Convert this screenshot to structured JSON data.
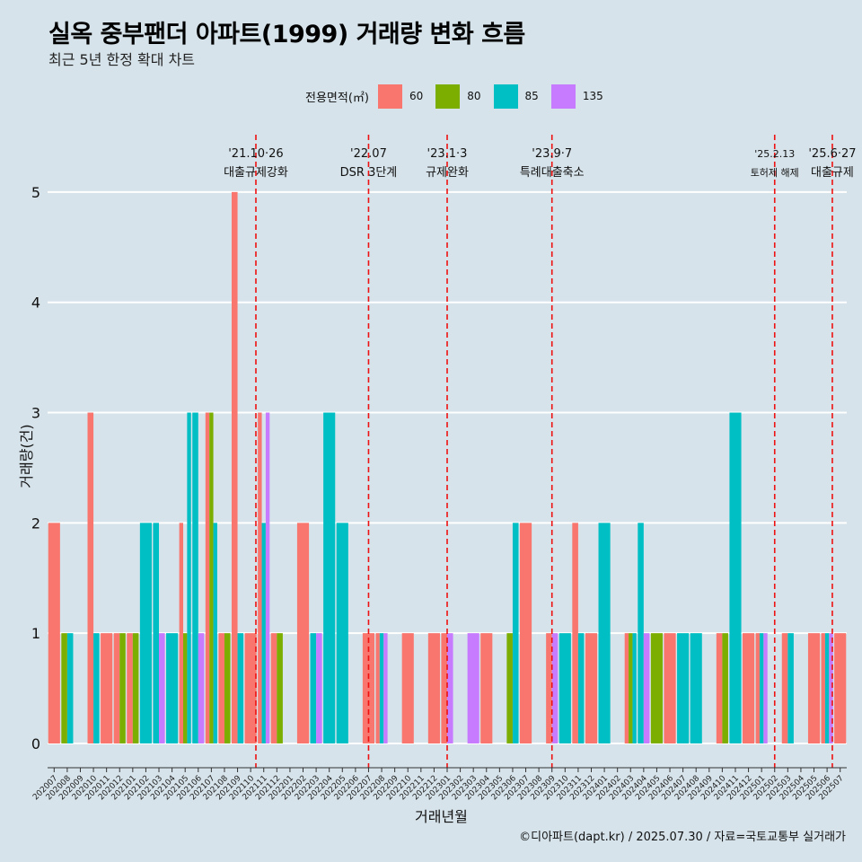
{
  "header": {
    "title": "실옥 중부팬더 아파트(1999) 거래량 변화 흐름",
    "subtitle": "최근 5년 한정 확대 차트"
  },
  "legend": {
    "title": "전용면적(㎡)",
    "items": [
      {
        "label": "60",
        "color": "#F8766D"
      },
      {
        "label": "80",
        "color": "#7CAE00"
      },
      {
        "label": "85",
        "color": "#00BFC4"
      },
      {
        "label": "135",
        "color": "#C77CFF"
      }
    ]
  },
  "caption": "©디아파트(dapt.kr) / 2025.07.30 / 자료=국토교통부 실거래가",
  "chart_data": {
    "type": "bar",
    "xlabel": "거래년월",
    "ylabel": "거래량(건)",
    "ylim": [
      -0.22,
      5.52
    ],
    "yticks": [
      0,
      1,
      2,
      3,
      4,
      5
    ],
    "categories": [
      "202007",
      "202008",
      "202009",
      "202010",
      "202011",
      "202012",
      "202101",
      "202102",
      "202103",
      "202104",
      "202105",
      "202106",
      "202107",
      "202108",
      "202109",
      "202110",
      "202111",
      "202112",
      "202201",
      "202202",
      "202203",
      "202204",
      "202205",
      "202206",
      "202207",
      "202208",
      "202209",
      "202210",
      "202211",
      "202212",
      "202301",
      "202302",
      "202303",
      "202304",
      "202305",
      "202306",
      "202307",
      "202308",
      "202309",
      "202310",
      "202311",
      "202312",
      "202401",
      "202402",
      "202403",
      "202404",
      "202405",
      "202406",
      "202407",
      "202408",
      "202409",
      "202410",
      "202411",
      "202412",
      "202501",
      "202502",
      "202503",
      "202504",
      "202505",
      "202506",
      "202507"
    ],
    "series": [
      {
        "name": "60",
        "color": "#F8766D",
        "points": [
          {
            "x": "202007",
            "y": 2
          },
          {
            "x": "202010",
            "y": 3
          },
          {
            "x": "202011",
            "y": 1
          },
          {
            "x": "202012",
            "y": 1
          },
          {
            "x": "202101",
            "y": 1
          },
          {
            "x": "202105",
            "y": 2
          },
          {
            "x": "202107",
            "y": 3
          },
          {
            "x": "202108",
            "y": 1
          },
          {
            "x": "202109",
            "y": 5
          },
          {
            "x": "202110",
            "y": 1
          },
          {
            "x": "202111",
            "y": 3
          },
          {
            "x": "202112",
            "y": 1
          },
          {
            "x": "202202",
            "y": 2
          },
          {
            "x": "202207",
            "y": 1
          },
          {
            "x": "202208",
            "y": 1
          },
          {
            "x": "202210",
            "y": 1
          },
          {
            "x": "202212",
            "y": 1
          },
          {
            "x": "202301",
            "y": 1
          },
          {
            "x": "202304",
            "y": 1
          },
          {
            "x": "202307",
            "y": 2
          },
          {
            "x": "202309",
            "y": 1
          },
          {
            "x": "202311",
            "y": 2
          },
          {
            "x": "202312",
            "y": 1
          },
          {
            "x": "202403",
            "y": 1
          },
          {
            "x": "202406",
            "y": 1
          },
          {
            "x": "202410",
            "y": 1
          },
          {
            "x": "202412",
            "y": 1
          },
          {
            "x": "202501",
            "y": 1
          },
          {
            "x": "202503",
            "y": 1
          },
          {
            "x": "202505",
            "y": 1
          },
          {
            "x": "202506",
            "y": 1
          },
          {
            "x": "202507",
            "y": 1
          }
        ]
      },
      {
        "name": "80",
        "color": "#7CAE00",
        "points": [
          {
            "x": "202008",
            "y": 1
          },
          {
            "x": "202012",
            "y": 1
          },
          {
            "x": "202101",
            "y": 1
          },
          {
            "x": "202105",
            "y": 1
          },
          {
            "x": "202107",
            "y": 3
          },
          {
            "x": "202108",
            "y": 1
          },
          {
            "x": "202112",
            "y": 1
          },
          {
            "x": "202306",
            "y": 1
          },
          {
            "x": "202403",
            "y": 1
          },
          {
            "x": "202405",
            "y": 1
          },
          {
            "x": "202410",
            "y": 1
          }
        ]
      },
      {
        "name": "85",
        "color": "#00BFC4",
        "points": [
          {
            "x": "202008",
            "y": 1
          },
          {
            "x": "202010",
            "y": 1
          },
          {
            "x": "202102",
            "y": 2
          },
          {
            "x": "202103",
            "y": 2
          },
          {
            "x": "202104",
            "y": 1
          },
          {
            "x": "202105",
            "y": 3
          },
          {
            "x": "202106",
            "y": 3
          },
          {
            "x": "202107",
            "y": 2
          },
          {
            "x": "202109",
            "y": 1
          },
          {
            "x": "202111",
            "y": 2
          },
          {
            "x": "202203",
            "y": 1
          },
          {
            "x": "202204",
            "y": 3
          },
          {
            "x": "202205",
            "y": 2
          },
          {
            "x": "202208",
            "y": 1
          },
          {
            "x": "202306",
            "y": 2
          },
          {
            "x": "202310",
            "y": 1
          },
          {
            "x": "202311",
            "y": 1
          },
          {
            "x": "202401",
            "y": 2
          },
          {
            "x": "202403",
            "y": 1
          },
          {
            "x": "202404",
            "y": 2
          },
          {
            "x": "202407",
            "y": 1
          },
          {
            "x": "202408",
            "y": 1
          },
          {
            "x": "202411",
            "y": 3
          },
          {
            "x": "202501",
            "y": 1
          },
          {
            "x": "202503",
            "y": 1
          },
          {
            "x": "202506",
            "y": 1
          }
        ]
      },
      {
        "name": "135",
        "color": "#C77CFF",
        "points": [
          {
            "x": "202103",
            "y": 1
          },
          {
            "x": "202106",
            "y": 1
          },
          {
            "x": "202111",
            "y": 3
          },
          {
            "x": "202203",
            "y": 1
          },
          {
            "x": "202208",
            "y": 1
          },
          {
            "x": "202301",
            "y": 1
          },
          {
            "x": "202303",
            "y": 1
          },
          {
            "x": "202309",
            "y": 1
          },
          {
            "x": "202404",
            "y": 1
          },
          {
            "x": "202501",
            "y": 1
          },
          {
            "x": "202506",
            "y": 1
          }
        ]
      }
    ],
    "events": [
      {
        "x": "202110",
        "offset": 0.4,
        "date": "'21.10·26",
        "label": "대출규제강화"
      },
      {
        "x": "202207",
        "offset": 0.0,
        "date": "'22.07",
        "label": "DSR 3단계"
      },
      {
        "x": "202301",
        "offset": 0.0,
        "date": "'23.1·3",
        "label": "규제완화"
      },
      {
        "x": "202309",
        "offset": 0.0,
        "date": "'23.9·7",
        "label": "특례대출축소"
      },
      {
        "x": "202502",
        "offset": 0.0,
        "date": "'25.2.13",
        "label": "토허제 해제"
      },
      {
        "x": "202506",
        "offset": 0.4,
        "date": "'25.6·27",
        "label": "대출규제"
      }
    ]
  }
}
